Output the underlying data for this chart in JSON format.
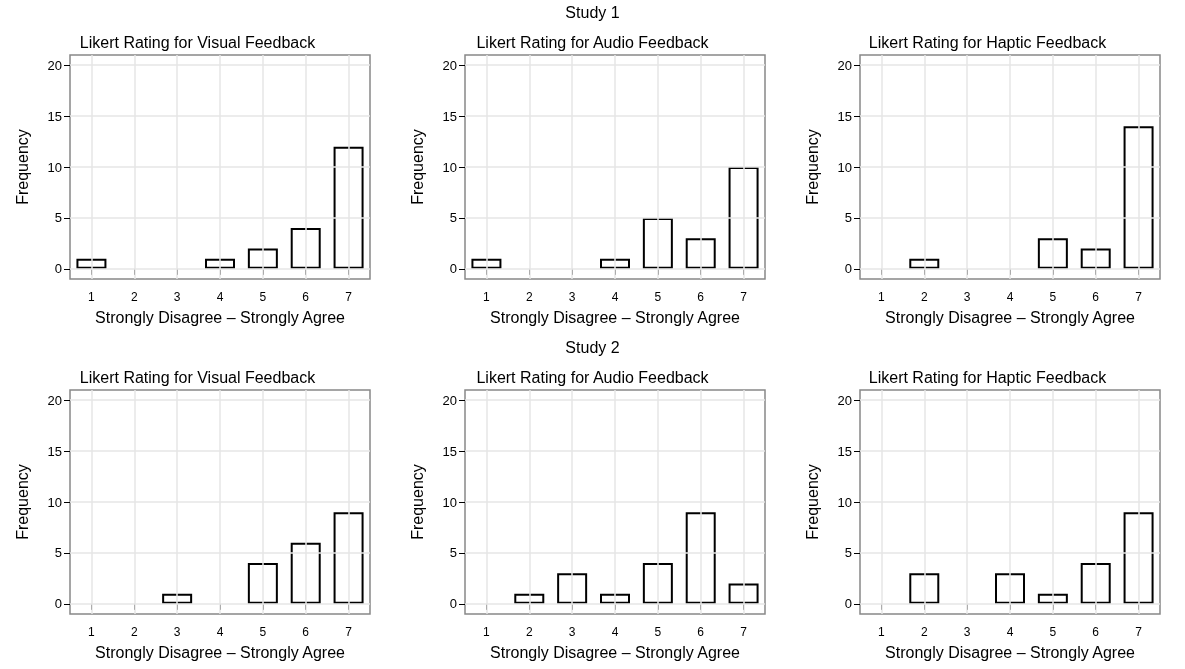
{
  "chart_data": [
    {
      "type": "bar",
      "title": "Likert Rating for Visual Feedback",
      "annotations": [
        "Study 1"
      ],
      "xlabel": "Strongly Disagree – Strongly Agree",
      "ylabel": "Frequency",
      "categories": [
        "1",
        "2",
        "3",
        "4",
        "5",
        "6",
        "7"
      ],
      "values": [
        1,
        null,
        null,
        1,
        2,
        4,
        12
      ],
      "color": "#000000",
      "ylim": [
        -1,
        21
      ],
      "yticks": [
        0,
        5,
        10,
        15,
        20
      ],
      "grid": true
    },
    {
      "type": "bar",
      "title": "Likert Rating for Audio Feedback",
      "xlabel": "Strongly Disagree – Strongly Agree",
      "ylabel": "Frequency",
      "categories": [
        "1",
        "2",
        "3",
        "4",
        "5",
        "6",
        "7"
      ],
      "values": [
        1,
        null,
        null,
        1,
        5,
        3,
        10
      ],
      "color": "#000000",
      "ylim": [
        -1,
        21
      ],
      "yticks": [
        0,
        5,
        10,
        15,
        20
      ],
      "grid": true
    },
    {
      "type": "bar",
      "title": "Likert Rating for Haptic Feedback",
      "xlabel": "Strongly Disagree – Strongly Agree",
      "ylabel": "Frequency",
      "categories": [
        "1",
        "2",
        "3",
        "4",
        "5",
        "6",
        "7"
      ],
      "values": [
        null,
        1,
        null,
        null,
        3,
        2,
        14
      ],
      "color": "#000000",
      "ylim": [
        -1,
        21
      ],
      "yticks": [
        0,
        5,
        10,
        15,
        20
      ],
      "grid": true
    },
    {
      "type": "bar",
      "title": "Likert Rating for Visual Feedback",
      "annotations": [
        "Study 2"
      ],
      "xlabel": "Strongly Disagree – Strongly Agree",
      "ylabel": "Frequency",
      "categories": [
        "1",
        "2",
        "3",
        "4",
        "5",
        "6",
        "7"
      ],
      "values": [
        null,
        null,
        1,
        null,
        4,
        6,
        9
      ],
      "color": "#000000",
      "ylim": [
        -1,
        21
      ],
      "yticks": [
        0,
        5,
        10,
        15,
        20
      ],
      "grid": true
    },
    {
      "type": "bar",
      "title": "Likert Rating for Audio Feedback",
      "xlabel": "Strongly Disagree – Strongly Agree",
      "ylabel": "Frequency",
      "categories": [
        "1",
        "2",
        "3",
        "4",
        "5",
        "6",
        "7"
      ],
      "values": [
        null,
        1,
        3,
        1,
        4,
        9,
        2
      ],
      "color": "#000000",
      "ylim": [
        -1,
        21
      ],
      "yticks": [
        0,
        5,
        10,
        15,
        20
      ],
      "grid": true
    },
    {
      "type": "bar",
      "title": "Likert Rating for Haptic Feedback",
      "xlabel": "Strongly Disagree – Strongly Agree",
      "ylabel": "Frequency",
      "categories": [
        "1",
        "2",
        "3",
        "4",
        "5",
        "6",
        "7"
      ],
      "values": [
        null,
        3,
        null,
        3,
        1,
        4,
        9
      ],
      "color": "#000000",
      "ylim": [
        -1,
        21
      ],
      "yticks": [
        0,
        5,
        10,
        15,
        20
      ],
      "grid": true
    }
  ]
}
